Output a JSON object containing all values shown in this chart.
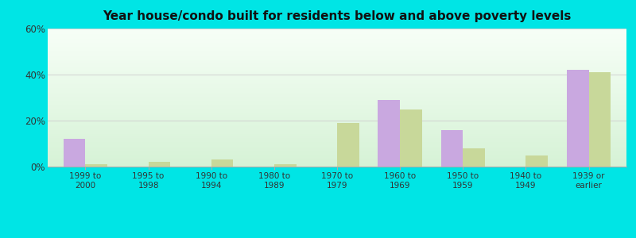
{
  "title": "Year house/condo built for residents below and above poverty levels",
  "categories": [
    "1999 to\n2000",
    "1995 to\n1998",
    "1990 to\n1994",
    "1980 to\n1989",
    "1970 to\n1979",
    "1960 to\n1969",
    "1950 to\n1959",
    "1940 to\n1949",
    "1939 or\nearlier"
  ],
  "below_poverty": [
    12,
    0,
    0,
    0,
    0,
    29,
    16,
    0,
    42
  ],
  "above_poverty": [
    1,
    2,
    3,
    1,
    19,
    25,
    8,
    5,
    41
  ],
  "below_color": "#c9a8e0",
  "above_color": "#c8d89a",
  "ylim": [
    0,
    60
  ],
  "yticks": [
    0,
    20,
    40,
    60
  ],
  "ytick_labels": [
    "0%",
    "20%",
    "40%",
    "60%"
  ],
  "bg_outer": "#00e5e5",
  "title_fontsize": 11,
  "bar_width": 0.35
}
